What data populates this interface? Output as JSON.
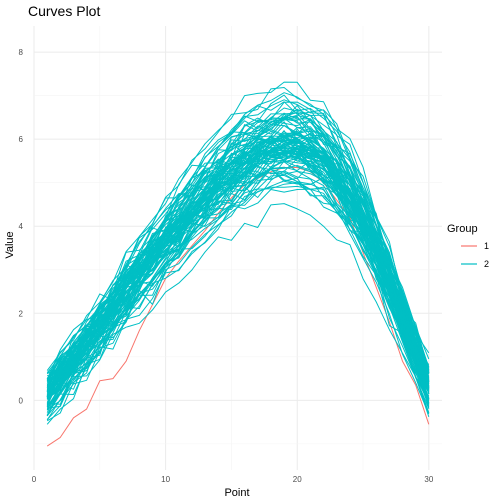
{
  "chart_data": {
    "type": "line",
    "title": "Curves Plot",
    "xlabel": "Point",
    "ylabel": "Value",
    "xlim": [
      0,
      31
    ],
    "ylim": [
      -1.6,
      8.6
    ],
    "x_ticks": [
      0,
      10,
      20,
      30
    ],
    "y_ticks": [
      0,
      2,
      4,
      6,
      8
    ],
    "x": [
      1,
      2,
      3,
      4,
      5,
      6,
      7,
      8,
      9,
      10,
      11,
      12,
      13,
      14,
      15,
      16,
      17,
      18,
      19,
      20,
      21,
      22,
      23,
      24,
      25,
      26,
      27,
      28,
      29,
      30
    ],
    "grid": true,
    "legend": {
      "title": "Group",
      "placement": "right",
      "entries": [
        {
          "label": "1",
          "color": "#F8766D"
        },
        {
          "label": "2",
          "color": "#00BFC4"
        }
      ]
    },
    "series": [
      {
        "group": "1",
        "color": "#F8766D",
        "values": [
          -1.05,
          -0.85,
          -0.4,
          -0.2,
          0.45,
          0.5,
          0.9,
          1.6,
          2.2,
          2.8,
          3.2,
          3.55,
          3.9,
          4.3,
          4.65,
          4.95,
          5.1,
          5.25,
          5.35,
          5.35,
          5.25,
          5.0,
          4.6,
          4.2,
          3.4,
          2.6,
          1.8,
          0.9,
          0.35,
          -0.55
        ]
      },
      {
        "group": "2",
        "color": "#00BFC4",
        "profile": [
          0.12,
          0.5,
          0.88,
          1.28,
          1.68,
          2.07,
          2.5,
          2.9,
          3.28,
          3.65,
          4.0,
          4.35,
          4.68,
          5.0,
          5.28,
          5.5,
          5.68,
          5.82,
          5.9,
          5.88,
          5.75,
          5.52,
          5.18,
          4.72,
          4.15,
          3.45,
          2.7,
          1.9,
          1.1,
          0.3
        ],
        "count": 99
      }
    ]
  }
}
